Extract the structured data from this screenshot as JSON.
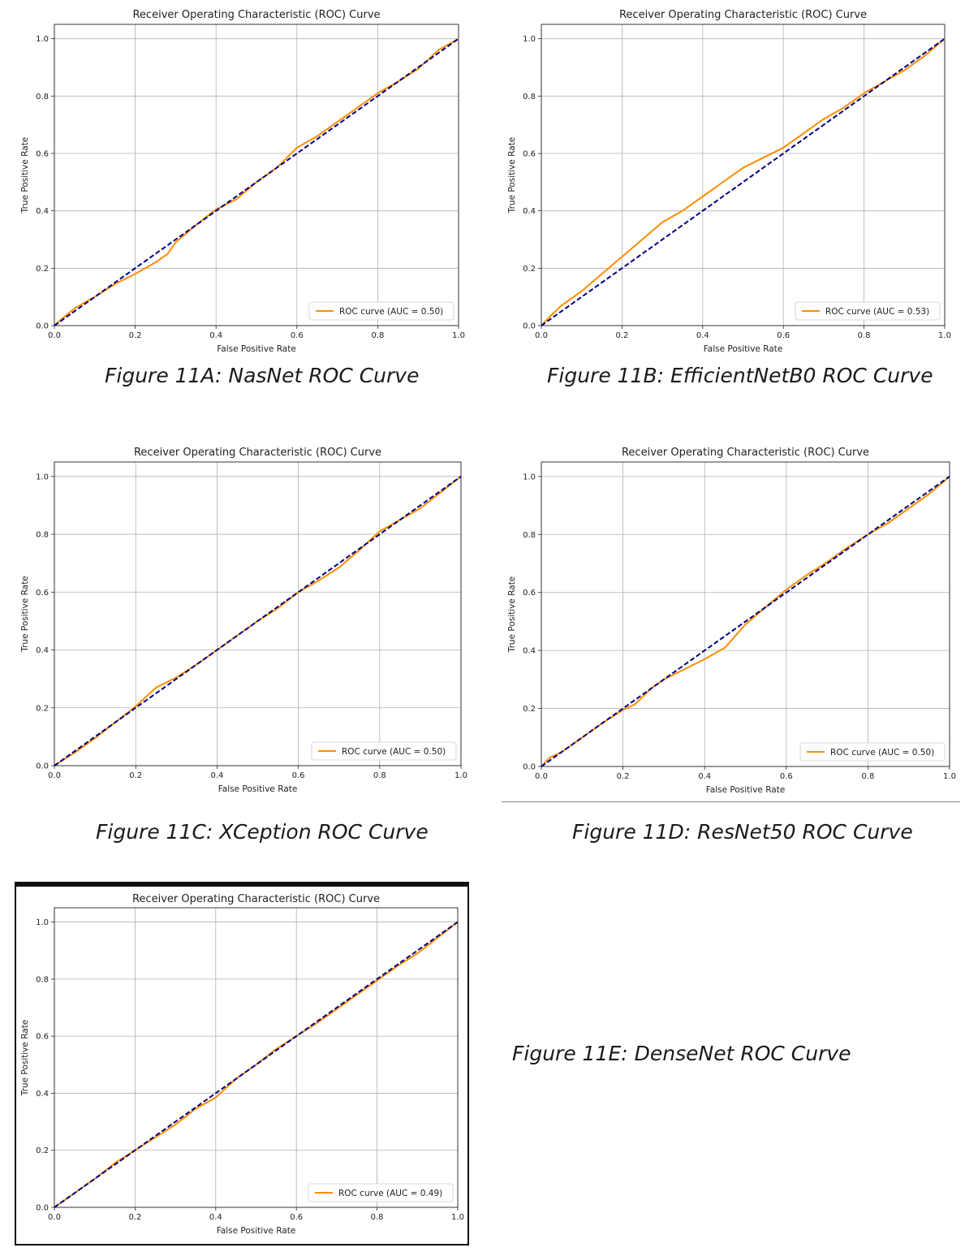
{
  "captions": [
    "Figure 11A: NasNet ROC Curve",
    "Figure 11B: EfficientNetB0 ROC Curve",
    "Figure 11C: XCeption ROC Curve",
    "Figure 11D: ResNet50 ROC Curve",
    "Figure 11E: DenseNet ROC Curve"
  ],
  "colors": {
    "roc": "#ff8c00",
    "diagonal": "#000080",
    "grid": "#b0b0b0"
  },
  "chart_data": [
    {
      "type": "line",
      "title": "Receiver Operating Characteristic (ROC) Curve",
      "xlabel": "False Positive Rate",
      "ylabel": "True Positive Rate",
      "xlim": [
        0,
        1
      ],
      "ylim": [
        0,
        1.05
      ],
      "xticks": [
        "0.0",
        "0.2",
        "0.4",
        "0.6",
        "0.8",
        "1.0"
      ],
      "yticks": [
        "0.0",
        "0.2",
        "0.4",
        "0.6",
        "0.8",
        "1.0"
      ],
      "grid": true,
      "legend": "lower right",
      "series": [
        {
          "name": "ROC curve (AUC = 0.50)",
          "x": [
            0,
            0.02,
            0.05,
            0.1,
            0.15,
            0.2,
            0.25,
            0.28,
            0.3,
            0.35,
            0.4,
            0.45,
            0.5,
            0.55,
            0.6,
            0.65,
            0.7,
            0.75,
            0.8,
            0.85,
            0.9,
            0.95,
            1.0
          ],
          "y": [
            0,
            0.025,
            0.06,
            0.1,
            0.145,
            0.18,
            0.22,
            0.25,
            0.29,
            0.35,
            0.405,
            0.44,
            0.5,
            0.55,
            0.62,
            0.66,
            0.71,
            0.76,
            0.81,
            0.85,
            0.895,
            0.96,
            1.0
          ]
        },
        {
          "name": "",
          "x": [
            0,
            1
          ],
          "y": [
            0,
            1
          ]
        }
      ]
    },
    {
      "type": "line",
      "title": "Receiver Operating Characteristic (ROC) Curve",
      "xlabel": "False Positive Rate",
      "ylabel": "True Positive Rate",
      "xlim": [
        0,
        1
      ],
      "ylim": [
        0,
        1.05
      ],
      "xticks": [
        "0.0",
        "0.2",
        "0.4",
        "0.6",
        "0.8",
        "1.0"
      ],
      "yticks": [
        "0.0",
        "0.2",
        "0.4",
        "0.6",
        "0.8",
        "1.0"
      ],
      "grid": true,
      "legend": "lower right",
      "series": [
        {
          "name": "ROC curve (AUC = 0.53)",
          "x": [
            0,
            0.02,
            0.05,
            0.1,
            0.15,
            0.2,
            0.25,
            0.3,
            0.35,
            0.4,
            0.45,
            0.5,
            0.55,
            0.6,
            0.65,
            0.7,
            0.75,
            0.8,
            0.85,
            0.9,
            0.95,
            1.0
          ],
          "y": [
            0,
            0.03,
            0.07,
            0.12,
            0.18,
            0.24,
            0.3,
            0.36,
            0.4,
            0.45,
            0.5,
            0.55,
            0.585,
            0.62,
            0.67,
            0.72,
            0.76,
            0.81,
            0.85,
            0.89,
            0.94,
            1.0
          ]
        },
        {
          "name": "",
          "x": [
            0,
            1
          ],
          "y": [
            0,
            1
          ]
        }
      ]
    },
    {
      "type": "line",
      "title": "Receiver Operating Characteristic (ROC) Curve",
      "xlabel": "False Positive Rate",
      "ylabel": "True Positive Rate",
      "xlim": [
        0,
        1
      ],
      "ylim": [
        0,
        1.05
      ],
      "xticks": [
        "0.0",
        "0.2",
        "0.4",
        "0.6",
        "0.8",
        "1.0"
      ],
      "yticks": [
        "0.0",
        "0.2",
        "0.4",
        "0.6",
        "0.8",
        "1.0"
      ],
      "grid": true,
      "legend": "lower right",
      "series": [
        {
          "name": "ROC curve (AUC = 0.50)",
          "x": [
            0,
            0.05,
            0.1,
            0.15,
            0.2,
            0.25,
            0.3,
            0.35,
            0.4,
            0.45,
            0.5,
            0.55,
            0.6,
            0.65,
            0.7,
            0.75,
            0.8,
            0.85,
            0.9,
            0.95,
            1.0
          ],
          "y": [
            0,
            0.045,
            0.095,
            0.15,
            0.205,
            0.27,
            0.305,
            0.35,
            0.4,
            0.45,
            0.5,
            0.545,
            0.6,
            0.64,
            0.685,
            0.745,
            0.81,
            0.85,
            0.89,
            0.945,
            1.0
          ]
        },
        {
          "name": "",
          "x": [
            0,
            1
          ],
          "y": [
            0,
            1
          ]
        }
      ]
    },
    {
      "type": "line",
      "title": "Receiver Operating Characteristic (ROC) Curve",
      "xlabel": "False Positive Rate",
      "ylabel": "True Positive Rate",
      "xlim": [
        0,
        1
      ],
      "ylim": [
        0,
        1.05
      ],
      "xticks": [
        "0.0",
        "0.2",
        "0.4",
        "0.6",
        "0.8",
        "1.0"
      ],
      "yticks": [
        "0.0",
        "0.2",
        "0.4",
        "0.6",
        "0.8",
        "1.0"
      ],
      "grid": true,
      "legend": "lower right",
      "series": [
        {
          "name": "ROC curve (AUC = 0.50)",
          "x": [
            0,
            0.02,
            0.05,
            0.1,
            0.15,
            0.2,
            0.23,
            0.27,
            0.3,
            0.35,
            0.4,
            0.45,
            0.5,
            0.55,
            0.6,
            0.65,
            0.7,
            0.75,
            0.8,
            0.85,
            0.9,
            0.95,
            1.0
          ],
          "y": [
            0,
            0.03,
            0.05,
            0.1,
            0.15,
            0.195,
            0.215,
            0.27,
            0.3,
            0.335,
            0.37,
            0.41,
            0.49,
            0.55,
            0.61,
            0.66,
            0.705,
            0.755,
            0.8,
            0.84,
            0.89,
            0.94,
            1.0
          ]
        },
        {
          "name": "",
          "x": [
            0,
            1
          ],
          "y": [
            0,
            1
          ]
        }
      ]
    },
    {
      "type": "line",
      "title": "Receiver Operating Characteristic (ROC) Curve",
      "xlabel": "False Positive Rate",
      "ylabel": "True Positive Rate",
      "xlim": [
        0,
        1
      ],
      "ylim": [
        0,
        1.05
      ],
      "xticks": [
        "0.0",
        "0.2",
        "0.4",
        "0.6",
        "0.8",
        "1.0"
      ],
      "yticks": [
        "0.0",
        "0.2",
        "0.4",
        "0.6",
        "0.8",
        "1.0"
      ],
      "grid": true,
      "legend": "lower right",
      "series": [
        {
          "name": "ROC curve (AUC = 0.49)",
          "x": [
            0,
            0.05,
            0.1,
            0.15,
            0.2,
            0.25,
            0.3,
            0.35,
            0.4,
            0.45,
            0.5,
            0.55,
            0.6,
            0.65,
            0.7,
            0.75,
            0.8,
            0.85,
            0.9,
            0.95,
            1.0
          ],
          "y": [
            0,
            0.05,
            0.1,
            0.155,
            0.2,
            0.245,
            0.29,
            0.345,
            0.385,
            0.45,
            0.5,
            0.555,
            0.6,
            0.645,
            0.695,
            0.745,
            0.795,
            0.845,
            0.89,
            0.945,
            1.0
          ]
        },
        {
          "name": "",
          "x": [
            0,
            1
          ],
          "y": [
            0,
            1
          ]
        }
      ]
    }
  ]
}
